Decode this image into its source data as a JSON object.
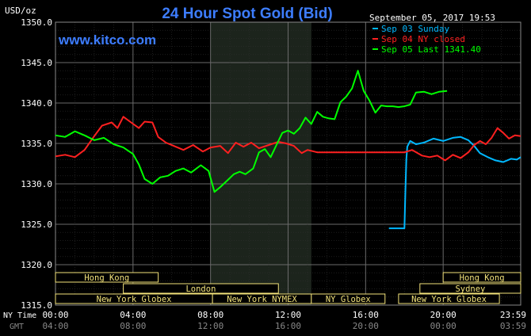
{
  "chart_data": {
    "type": "line",
    "title": "24 Hour Spot Gold (Bid)",
    "watermark": "www.kitco.com",
    "timestamp": "September 05, 2017 19:53",
    "ylabel": "USD/oz",
    "ylim": [
      1315,
      1350
    ],
    "yticks": [
      "1315.0",
      "1320.0",
      "1325.0",
      "1330.0",
      "1335.0",
      "1340.0",
      "1345.0",
      "1350.0"
    ],
    "xlim": [
      0,
      24
    ],
    "xticks": [
      {
        "ny": "00:00",
        "gmt": "04:00"
      },
      {
        "ny": "04:00",
        "gmt": "08:00"
      },
      {
        "ny": "08:00",
        "gmt": "12:00"
      },
      {
        "ny": "12:00",
        "gmt": "16:00"
      },
      {
        "ny": "16:00",
        "gmt": "20:00"
      },
      {
        "ny": "20:00",
        "gmt": "00:00"
      },
      {
        "ny": "23:59",
        "gmt": "03:59"
      }
    ],
    "xtick_hours": [
      0,
      4,
      8,
      12,
      16,
      20,
      24
    ],
    "time_labels": {
      "ny": "NY Time",
      "gmt": "GMT"
    },
    "grid": true,
    "legend_position": "top-right",
    "highlight_hours": [
      8,
      13.2
    ],
    "series": [
      {
        "name": "Sep 03 Sunday",
        "color": "#00b8ff",
        "points": [
          [
            17.2,
            1324.5
          ],
          [
            18.0,
            1324.5
          ],
          [
            18.05,
            1329.0
          ],
          [
            18.1,
            1333.0
          ],
          [
            18.15,
            1334.6
          ],
          [
            18.3,
            1335.3
          ],
          [
            18.6,
            1334.9
          ],
          [
            19.0,
            1335.1
          ],
          [
            19.5,
            1335.6
          ],
          [
            20.0,
            1335.3
          ],
          [
            20.5,
            1335.7
          ],
          [
            20.9,
            1335.8
          ],
          [
            21.3,
            1335.4
          ],
          [
            21.6,
            1334.7
          ],
          [
            21.9,
            1333.8
          ],
          [
            22.3,
            1333.3
          ],
          [
            22.7,
            1332.9
          ],
          [
            23.1,
            1332.7
          ],
          [
            23.5,
            1333.1
          ],
          [
            23.8,
            1333.0
          ],
          [
            24.0,
            1333.3
          ]
        ]
      },
      {
        "name": "Sep 04 NY closed",
        "color": "#ff2020",
        "points": [
          [
            0,
            1333.4
          ],
          [
            0.5,
            1333.6
          ],
          [
            1.0,
            1333.3
          ],
          [
            1.5,
            1334.2
          ],
          [
            2.0,
            1335.9
          ],
          [
            2.4,
            1337.2
          ],
          [
            2.9,
            1337.6
          ],
          [
            3.2,
            1336.9
          ],
          [
            3.5,
            1338.3
          ],
          [
            3.9,
            1337.6
          ],
          [
            4.3,
            1336.9
          ],
          [
            4.6,
            1337.7
          ],
          [
            5.0,
            1337.6
          ],
          [
            5.3,
            1335.8
          ],
          [
            5.7,
            1335.1
          ],
          [
            6.2,
            1334.6
          ],
          [
            6.6,
            1334.2
          ],
          [
            7.1,
            1334.8
          ],
          [
            7.6,
            1334.0
          ],
          [
            8.0,
            1334.5
          ],
          [
            8.5,
            1334.7
          ],
          [
            8.9,
            1333.8
          ],
          [
            9.3,
            1335.1
          ],
          [
            9.7,
            1334.6
          ],
          [
            10.1,
            1335.1
          ],
          [
            10.5,
            1334.4
          ],
          [
            11.0,
            1334.8
          ],
          [
            11.5,
            1335.2
          ],
          [
            11.9,
            1335.0
          ],
          [
            12.3,
            1334.7
          ],
          [
            12.7,
            1333.8
          ],
          [
            13.0,
            1334.2
          ],
          [
            13.5,
            1333.9
          ],
          [
            18.0,
            1333.9
          ],
          [
            18.4,
            1334.2
          ],
          [
            18.9,
            1333.5
          ],
          [
            19.3,
            1333.3
          ],
          [
            19.7,
            1333.5
          ],
          [
            20.1,
            1332.9
          ],
          [
            20.5,
            1333.6
          ],
          [
            20.9,
            1333.2
          ],
          [
            21.3,
            1333.9
          ],
          [
            21.6,
            1334.8
          ],
          [
            21.9,
            1335.3
          ],
          [
            22.2,
            1334.9
          ],
          [
            22.5,
            1335.7
          ],
          [
            22.8,
            1336.9
          ],
          [
            23.1,
            1336.3
          ],
          [
            23.4,
            1335.6
          ],
          [
            23.7,
            1336.0
          ],
          [
            24.0,
            1335.9
          ]
        ]
      },
      {
        "name": "Sep 05 Last 1341.40",
        "color": "#00ff00",
        "points": [
          [
            0,
            1336.0
          ],
          [
            0.5,
            1335.8
          ],
          [
            1.0,
            1336.5
          ],
          [
            1.5,
            1336.0
          ],
          [
            2.0,
            1335.4
          ],
          [
            2.5,
            1335.7
          ],
          [
            3.0,
            1334.9
          ],
          [
            3.5,
            1334.5
          ],
          [
            4.0,
            1333.7
          ],
          [
            4.3,
            1332.4
          ],
          [
            4.6,
            1330.6
          ],
          [
            5.0,
            1330.0
          ],
          [
            5.4,
            1330.8
          ],
          [
            5.8,
            1331.0
          ],
          [
            6.2,
            1331.6
          ],
          [
            6.6,
            1331.9
          ],
          [
            7.0,
            1331.4
          ],
          [
            7.5,
            1332.3
          ],
          [
            7.9,
            1331.6
          ],
          [
            8.2,
            1329.0
          ],
          [
            8.5,
            1329.6
          ],
          [
            8.9,
            1330.5
          ],
          [
            9.2,
            1331.2
          ],
          [
            9.5,
            1331.5
          ],
          [
            9.8,
            1331.2
          ],
          [
            10.2,
            1331.9
          ],
          [
            10.5,
            1333.9
          ],
          [
            10.8,
            1334.3
          ],
          [
            11.1,
            1333.3
          ],
          [
            11.4,
            1334.8
          ],
          [
            11.7,
            1336.3
          ],
          [
            12.0,
            1336.6
          ],
          [
            12.3,
            1336.2
          ],
          [
            12.6,
            1336.9
          ],
          [
            12.9,
            1338.2
          ],
          [
            13.2,
            1337.4
          ],
          [
            13.5,
            1338.9
          ],
          [
            13.8,
            1338.3
          ],
          [
            14.1,
            1338.1
          ],
          [
            14.4,
            1338.0
          ],
          [
            14.7,
            1340.1
          ],
          [
            15.0,
            1340.8
          ],
          [
            15.3,
            1341.8
          ],
          [
            15.6,
            1344.0
          ],
          [
            15.9,
            1341.5
          ],
          [
            16.2,
            1340.3
          ],
          [
            16.5,
            1338.8
          ],
          [
            16.8,
            1339.7
          ],
          [
            17.1,
            1339.6
          ],
          [
            17.4,
            1339.6
          ],
          [
            17.7,
            1339.5
          ],
          [
            18.0,
            1339.6
          ],
          [
            18.3,
            1339.8
          ],
          [
            18.6,
            1341.3
          ],
          [
            19.0,
            1341.4
          ],
          [
            19.4,
            1341.1
          ],
          [
            19.8,
            1341.4
          ],
          [
            20.2,
            1341.5
          ]
        ]
      }
    ],
    "market_sessions": [
      {
        "name": "Hong Kong",
        "start": 0,
        "end": 5.3,
        "row": 0
      },
      {
        "name": "London",
        "start": 3.5,
        "end": 11.5,
        "row": 1
      },
      {
        "name": "New York Globex",
        "start": 0,
        "end": 8.1,
        "row": 2
      },
      {
        "name": "New York NYMEX",
        "start": 8.1,
        "end": 13.2,
        "row": 2
      },
      {
        "name": "NY Globex",
        "start": 13.2,
        "end": 17.0,
        "row": 2
      },
      {
        "name": "Hong Kong",
        "start": 20.0,
        "end": 24.0,
        "row": 0
      },
      {
        "name": "Sydney",
        "start": 18.8,
        "end": 24.0,
        "row": 1
      },
      {
        "name": "New York Globex",
        "start": 17.7,
        "end": 22.9,
        "row": 2
      }
    ]
  }
}
